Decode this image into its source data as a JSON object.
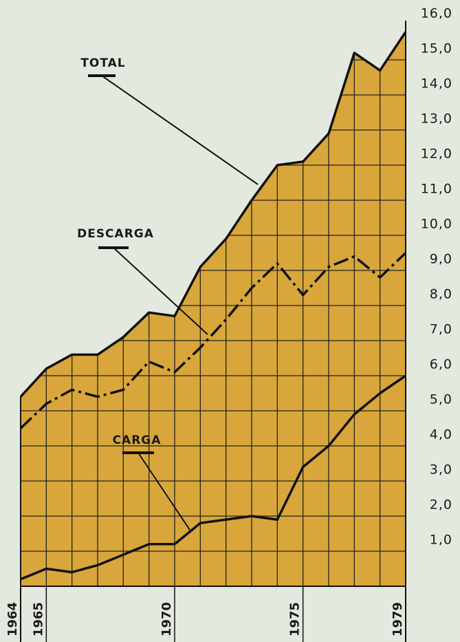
{
  "chart_data": {
    "type": "line",
    "categories": [
      "1964",
      "1965",
      null,
      null,
      null,
      null,
      "1970",
      null,
      null,
      null,
      null,
      "1975",
      null,
      null,
      null,
      "1979"
    ],
    "series": [
      {
        "name": "TOTAL",
        "color": "#111111",
        "fill": "#d8a63a",
        "values": [
          5.4,
          6.2,
          6.6,
          6.6,
          7.1,
          7.8,
          7.7,
          9.1,
          9.9,
          11.0,
          12.0,
          12.1,
          12.9,
          15.2,
          14.7,
          15.8
        ]
      },
      {
        "name": "DESCARGA",
        "color": "#111111",
        "dashed": true,
        "values": [
          4.5,
          5.2,
          5.6,
          5.4,
          5.6,
          6.4,
          6.1,
          6.8,
          7.6,
          8.5,
          9.2,
          8.3,
          9.1,
          9.4,
          8.8,
          9.5
        ]
      },
      {
        "name": "CARGA",
        "color": "#111111",
        "values": [
          0.2,
          0.5,
          0.4,
          0.6,
          0.9,
          1.2,
          1.2,
          1.8,
          1.9,
          2.0,
          1.9,
          3.4,
          4.0,
          4.9,
          5.5,
          6.0
        ]
      }
    ],
    "ylim": [
      0,
      16
    ],
    "yticks": [
      {
        "value": 1,
        "label": "1,0"
      },
      {
        "value": 2,
        "label": "2,0"
      },
      {
        "value": 3,
        "label": "3,0"
      },
      {
        "value": 4,
        "label": "4,0"
      },
      {
        "value": 5,
        "label": "5,0"
      },
      {
        "value": 6,
        "label": "6,0"
      },
      {
        "value": 7,
        "label": "7,0"
      },
      {
        "value": 8,
        "label": "8,0"
      },
      {
        "value": 9,
        "label": "9,0"
      },
      {
        "value": 10,
        "label": "10,0"
      },
      {
        "value": 11,
        "label": "11,0"
      },
      {
        "value": 12,
        "label": "12,0"
      },
      {
        "value": 13,
        "label": "13,0"
      },
      {
        "value": 14,
        "label": "14,0"
      },
      {
        "value": 15,
        "label": "15,0"
      },
      {
        "value": 16,
        "label": "16,0"
      }
    ],
    "grid": true
  }
}
